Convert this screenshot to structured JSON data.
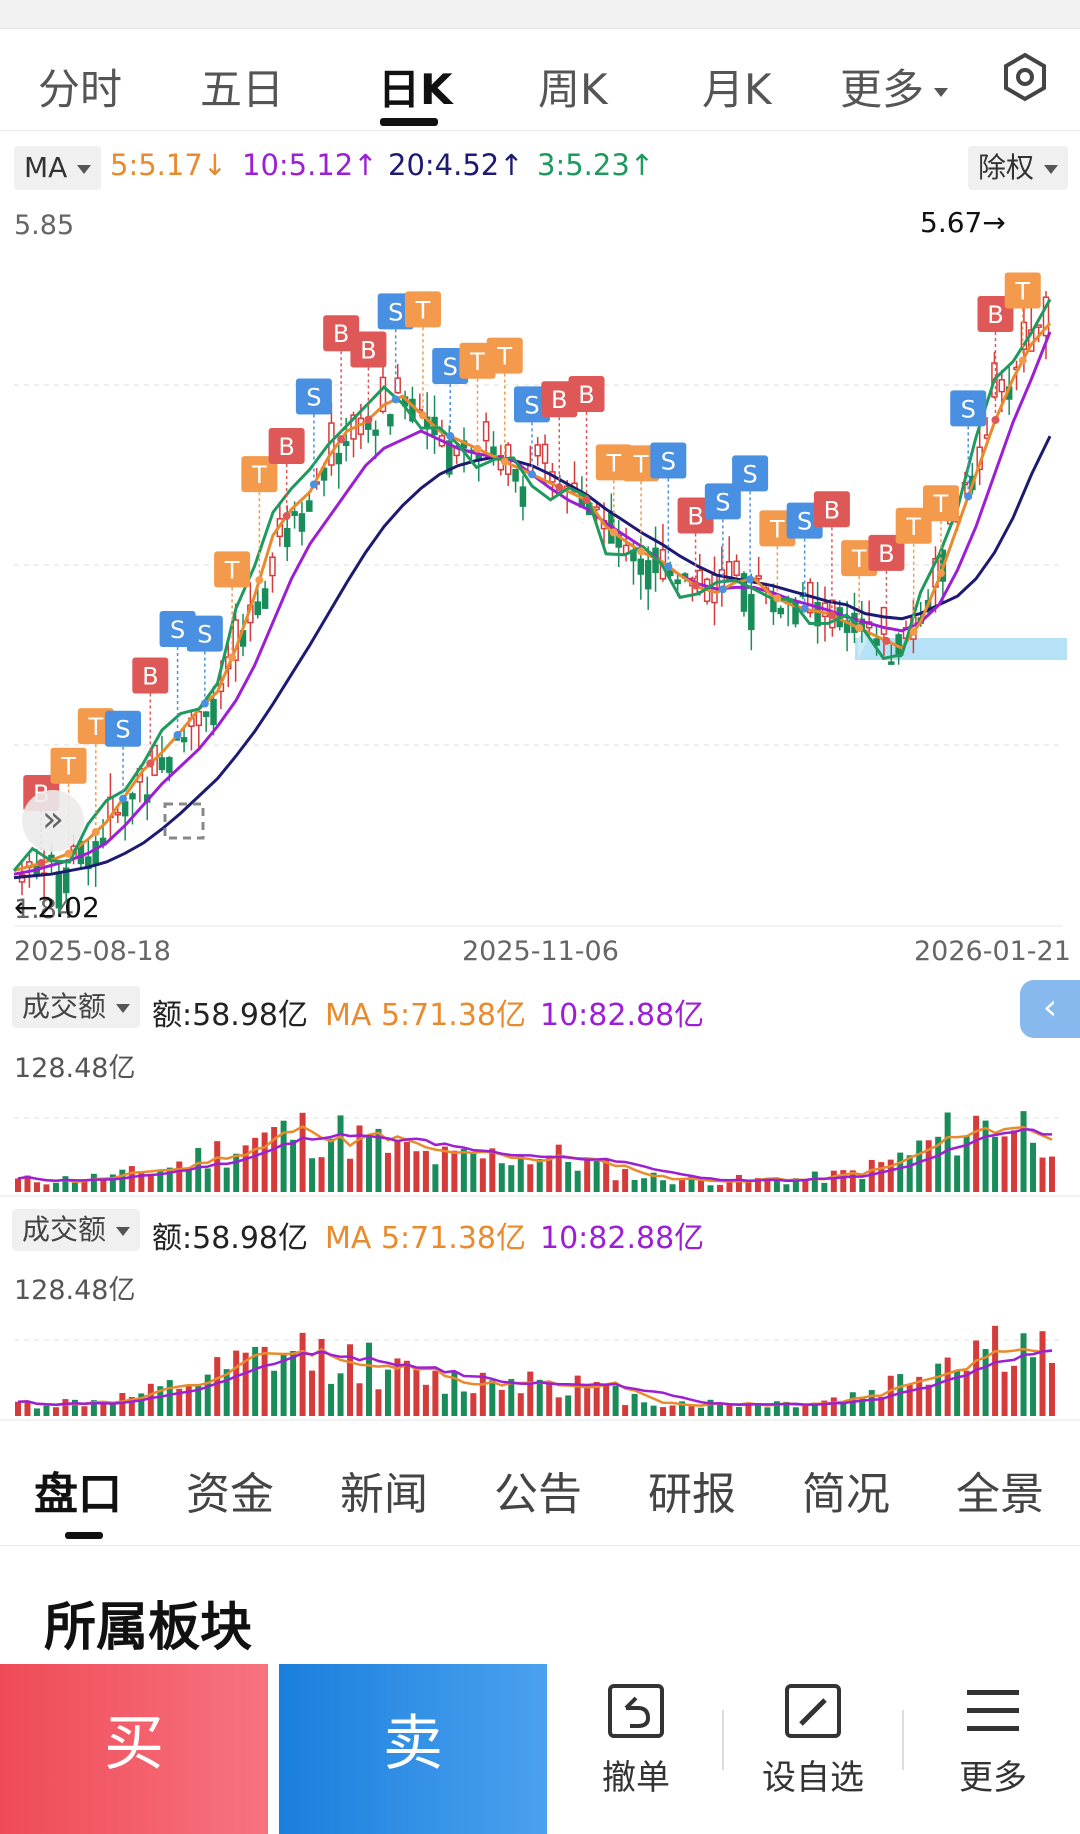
{
  "tabs": [
    {
      "label": "分时",
      "active": false
    },
    {
      "label": "五日",
      "active": false
    },
    {
      "label": "日K",
      "active": true
    },
    {
      "label": "周K",
      "active": false
    },
    {
      "label": "月K",
      "active": false
    },
    {
      "label": "更多",
      "active": false
    }
  ],
  "ma_bar": {
    "selector": "MA",
    "ma5": "5:5.17",
    "ma10": "10:5.12",
    "ma20": "20:4.52",
    "ma3": "3:5.23",
    "adjust": "除权"
  },
  "colors": {
    "ma5": "#e98a2c",
    "ma10": "#9d1fd4",
    "ma20": "#1c1a72",
    "ma3": "#1e9a5e",
    "up": "#d63b3b",
    "down": "#1a8c5a",
    "buy_marker": "#df5858",
    "sell_marker": "#4a90e2",
    "t_marker": "#f39a4c"
  },
  "price_panel": {
    "top_price": "5.85",
    "bottom_price": "1.84",
    "high_marker": "5.67→",
    "low_marker": "←2.02",
    "dates": [
      "2025-08-18",
      "2025-11-06",
      "2026-01-21"
    ]
  },
  "chart_data": {
    "type": "candlestick",
    "ylim": [
      1.84,
      5.85
    ],
    "high": 5.67,
    "low": 2.02,
    "ma_lines": {
      "ma5": [
        2.02,
        2.05,
        2.08,
        2.12,
        2.2,
        2.3,
        2.45,
        2.6,
        2.7,
        2.82,
        2.95,
        3.05,
        3.3,
        3.6,
        3.95,
        4.1,
        4.2,
        4.4,
        4.55,
        4.6,
        4.7,
        4.75,
        4.65,
        4.55,
        4.5,
        4.45,
        4.4,
        4.35,
        4.3,
        4.25,
        4.2,
        4.15,
        4.0,
        3.92,
        3.85,
        3.8,
        3.72,
        3.65,
        3.62,
        3.68,
        3.7,
        3.6,
        3.55,
        3.52,
        3.5,
        3.45,
        3.4,
        3.35,
        3.3,
        3.45,
        3.7,
        4.0,
        4.3,
        4.6,
        4.85,
        5.05,
        5.17
      ],
      "ma10": [
        2.0,
        2.02,
        2.05,
        2.08,
        2.12,
        2.18,
        2.28,
        2.4,
        2.52,
        2.62,
        2.72,
        2.85,
        3.0,
        3.2,
        3.45,
        3.7,
        3.9,
        4.05,
        4.2,
        4.35,
        4.45,
        4.5,
        4.55,
        4.5,
        4.45,
        4.42,
        4.4,
        4.38,
        4.3,
        4.22,
        4.15,
        4.1,
        4.02,
        3.95,
        3.88,
        3.8,
        3.72,
        3.67,
        3.64,
        3.65,
        3.65,
        3.62,
        3.58,
        3.55,
        3.52,
        3.48,
        3.45,
        3.42,
        3.4,
        3.45,
        3.55,
        3.75,
        4.0,
        4.3,
        4.6,
        4.85,
        5.12
      ],
      "ma20": [
        1.98,
        1.99,
        2.0,
        2.02,
        2.04,
        2.07,
        2.12,
        2.18,
        2.26,
        2.35,
        2.45,
        2.55,
        2.68,
        2.82,
        2.98,
        3.15,
        3.32,
        3.5,
        3.68,
        3.85,
        4.0,
        4.12,
        4.22,
        4.3,
        4.35,
        4.38,
        4.4,
        4.38,
        4.35,
        4.3,
        4.24,
        4.18,
        4.1,
        4.03,
        3.96,
        3.9,
        3.83,
        3.77,
        3.72,
        3.7,
        3.68,
        3.66,
        3.63,
        3.6,
        3.57,
        3.55,
        3.5,
        3.48,
        3.47,
        3.5,
        3.55,
        3.6,
        3.7,
        3.85,
        4.05,
        4.3,
        4.52
      ]
    },
    "markers": [
      "B",
      "T",
      "T",
      "S",
      "B",
      "S",
      "S",
      "T",
      "T",
      "B",
      "S",
      "B",
      "B",
      "S",
      "T",
      "S",
      "T",
      "T",
      "S",
      "B",
      "B",
      "T",
      "T",
      "S",
      "B",
      "S",
      "S",
      "T",
      "S",
      "B",
      "T",
      "B",
      "T",
      "T",
      "S",
      "B",
      "T"
    ]
  },
  "volume_panels": [
    {
      "selector": "成交额",
      "amount": "额:58.98亿",
      "ma5": "MA 5:71.38亿",
      "ma10": "10:82.88亿",
      "max": "128.48亿"
    },
    {
      "selector": "成交额",
      "amount": "额:58.98亿",
      "ma5": "MA 5:71.38亿",
      "ma10": "10:82.88亿",
      "max": "128.48亿"
    }
  ],
  "bottom_tabs": [
    "盘口",
    "资金",
    "新闻",
    "公告",
    "研报",
    "简况",
    "全景"
  ],
  "section_title": "所属板块",
  "actions": {
    "buy": "买",
    "sell": "卖",
    "cancel": "撤单",
    "watchlist": "设自选",
    "more": "更多"
  }
}
